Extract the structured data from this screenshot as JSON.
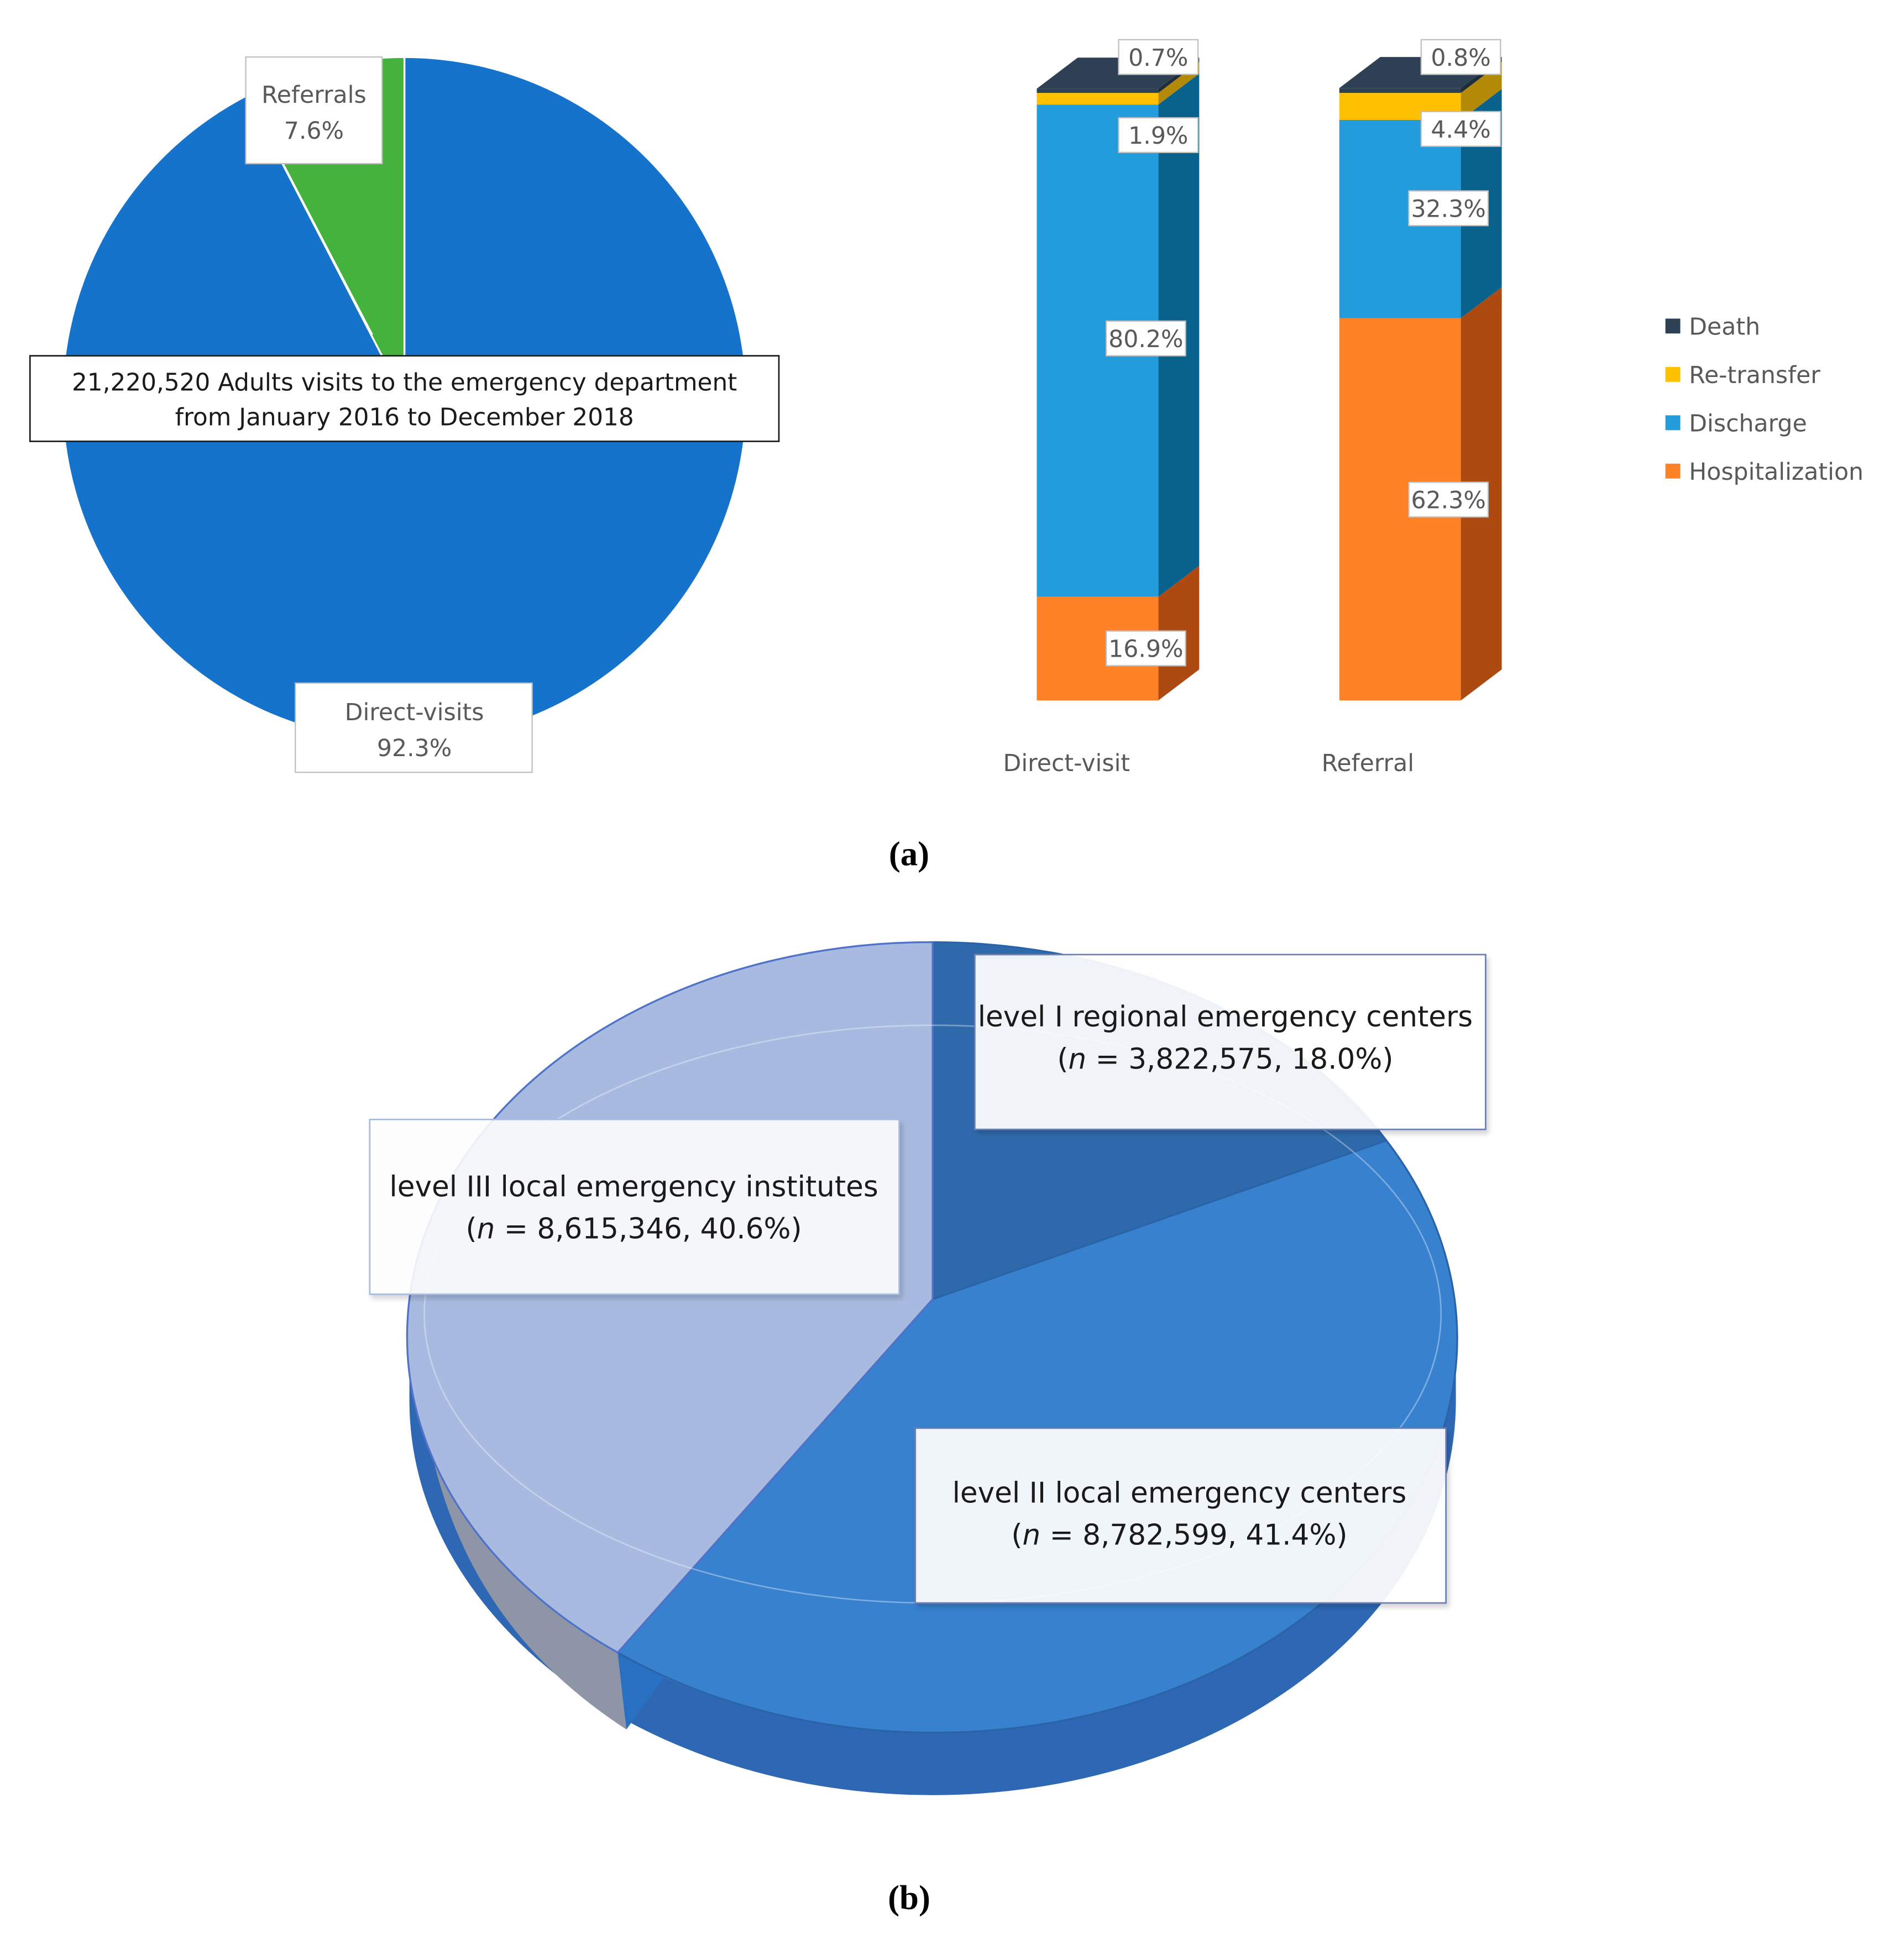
{
  "chart_data": [
    {
      "type": "pie",
      "title": "21,220,520 Adults visits to the emergency department",
      "subtitle": "from January 2016 to December 2018",
      "slices": [
        {
          "label": "Direct-visits",
          "value": 92.3,
          "value_label": "92.3%",
          "color": "#1573CB"
        },
        {
          "label": "Referrals",
          "value": 7.6,
          "value_label": "7.6%",
          "color": "#44B23C"
        }
      ]
    },
    {
      "type": "bar",
      "stacked": true,
      "percent_stacked": true,
      "categories": [
        "Direct-visit",
        "Referral"
      ],
      "series": [
        {
          "name": "Hospitalization",
          "color": "#FF8226",
          "side_color": "#AC4A12",
          "values": [
            16.9,
            62.3
          ],
          "labels": [
            "16.9%",
            "62.3%"
          ]
        },
        {
          "name": "Discharge",
          "color": "#229CDA",
          "side_color": "#08628C",
          "values": [
            80.2,
            32.3
          ],
          "labels": [
            "80.2%",
            "32.3%"
          ]
        },
        {
          "name": "Re-transfer",
          "color": "#FFC000",
          "side_color": "#B28A08",
          "values": [
            1.9,
            4.4
          ],
          "labels": [
            "1.9%",
            "4.4%"
          ]
        },
        {
          "name": "Death",
          "color": "#2E4053",
          "side_color": "#1F2C39",
          "values": [
            0.7,
            0.8
          ],
          "labels": [
            "0.7%",
            "0.8%"
          ]
        }
      ],
      "legend_order": [
        "Death",
        "Re-transfer",
        "Discharge",
        "Hospitalization"
      ],
      "legend_position": "right",
      "panel": "(a)"
    },
    {
      "type": "pie",
      "style": "3d",
      "slices": [
        {
          "label": "level I regional emergency centers",
          "n": "3,822,575",
          "value": 18.0,
          "value_label": "18.0%",
          "color": "#2E6AAB"
        },
        {
          "label": "level II local emergency centers",
          "n": "8,782,599",
          "value": 41.4,
          "value_label": "41.4%",
          "color": "#3881CF"
        },
        {
          "label": "level III local emergency institutes",
          "n": "8,615,346",
          "value": 40.6,
          "value_label": "40.6%",
          "color": "#A8BADF"
        }
      ],
      "panel": "(b)"
    }
  ]
}
